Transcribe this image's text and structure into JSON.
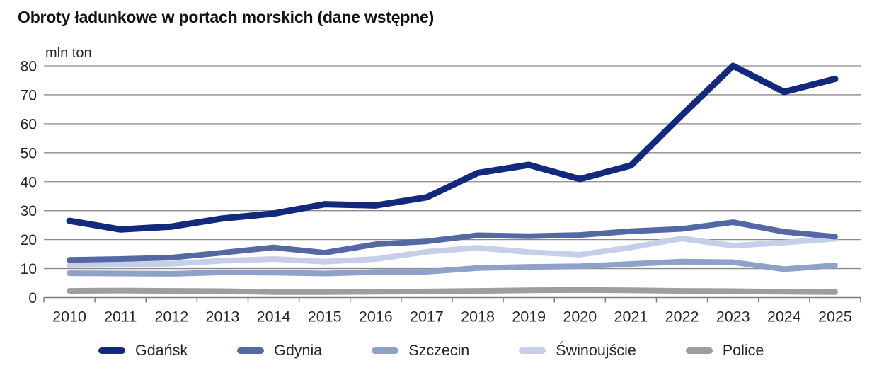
{
  "title": "Obroty ładunkowe w portach morskich (dane wstępne)",
  "unit_label": "mln ton",
  "colors": {
    "gridline": "#8A8A8A",
    "axis": "#7E7E7E",
    "text": "#262626",
    "title": "#111111"
  },
  "chart_data": {
    "type": "line",
    "title": "Obroty ładunkowe w portach morskich (dane wstępne)",
    "ylabel": "mln ton",
    "xlabel": "",
    "grid": true,
    "legend_position": "bottom",
    "ylim": [
      0,
      80
    ],
    "yticks": [
      0,
      10,
      20,
      30,
      40,
      50,
      60,
      70,
      80
    ],
    "x": [
      "2010",
      "2011",
      "2012",
      "2013",
      "2014",
      "2015",
      "2016",
      "2017",
      "2018",
      "2019",
      "2020",
      "2021",
      "2022",
      "2023",
      "2024",
      "2025"
    ],
    "series": [
      {
        "name": "Gdańsk",
        "slug": "gdansk",
        "color": "#13297D",
        "values": [
          26.5,
          23.5,
          24.5,
          27.3,
          29.0,
          32.2,
          31.8,
          34.6,
          43.0,
          45.8,
          40.9,
          45.6,
          63.0,
          80.0,
          71.0,
          75.5
        ]
      },
      {
        "name": "Gdynia",
        "slug": "gdynia",
        "color": "#5469A4",
        "values": [
          13.0,
          13.3,
          13.8,
          15.5,
          17.3,
          15.5,
          18.4,
          19.4,
          21.5,
          21.2,
          21.6,
          22.9,
          23.7,
          26.0,
          22.7,
          21.0
        ]
      },
      {
        "name": "Szczecin",
        "slug": "szczecin",
        "color": "#8FA0C9",
        "values": [
          8.4,
          8.3,
          8.2,
          8.7,
          8.6,
          8.3,
          8.8,
          8.9,
          10.2,
          10.6,
          10.8,
          11.6,
          12.4,
          12.2,
          9.8,
          11.1
        ]
      },
      {
        "name": "Świnoujście",
        "slug": "swinoujscie",
        "color": "#C5CFE9",
        "values": [
          11.2,
          11.4,
          11.7,
          12.7,
          13.3,
          12.4,
          13.3,
          15.8,
          17.2,
          15.7,
          14.8,
          17.3,
          20.4,
          17.9,
          19.0,
          20.3
        ]
      },
      {
        "name": "Police",
        "slug": "police",
        "color": "#9E9E9A",
        "values": [
          2.3,
          2.4,
          2.3,
          2.2,
          1.9,
          1.9,
          2.0,
          2.1,
          2.3,
          2.5,
          2.6,
          2.5,
          2.3,
          2.2,
          2.0,
          1.9
        ]
      }
    ]
  }
}
